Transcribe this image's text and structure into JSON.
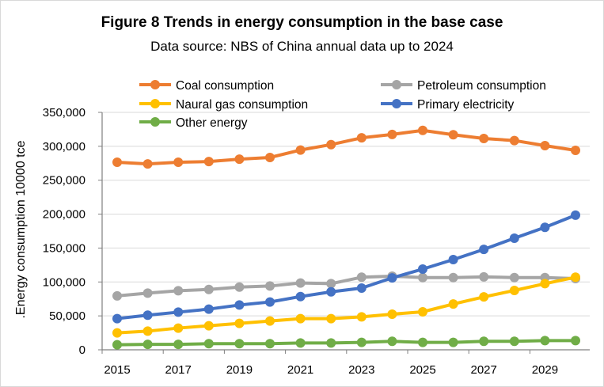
{
  "chart_data": {
    "type": "line",
    "title": "Figure 8  Trends in energy consumption in the base case",
    "subtitle": "Data source: NBS of China annual data up to 2024",
    "xlabel": "",
    "ylabel": ".Energy consumption  10000 tce",
    "ylim": [
      0,
      350000
    ],
    "yticks": [
      0,
      50000,
      100000,
      150000,
      200000,
      250000,
      300000,
      350000
    ],
    "ytick_labels": [
      "0",
      "50,000",
      "100,000",
      "150,000",
      "200,000",
      "250,000",
      "300,000",
      "350,000"
    ],
    "x": [
      2015,
      2016,
      2017,
      2018,
      2019,
      2020,
      2021,
      2022,
      2023,
      2024,
      2025,
      2026,
      2027,
      2028,
      2029,
      2030
    ],
    "xtick_labels": [
      "2015",
      "2017",
      "2019",
      "2021",
      "2023",
      "2025",
      "2027",
      "2029"
    ],
    "grid": "horizontal",
    "legend_position": "top",
    "series": [
      {
        "name": "Coal consumption",
        "color": "#ED7D31",
        "values": [
          276500,
          274000,
          276500,
          277500,
          281000,
          283500,
          294500,
          302500,
          312500,
          317500,
          323500,
          317000,
          311500,
          308500,
          301000,
          294000
        ]
      },
      {
        "name": "Petroleum consumption",
        "color": "#A5A5A5",
        "values": [
          79500,
          83500,
          87000,
          89000,
          92500,
          94000,
          98500,
          97500,
          107000,
          108500,
          106500,
          106500,
          107500,
          106500,
          106500,
          105000
        ]
      },
      {
        "name": "Naural gas consumption",
        "color": "#FFC000",
        "values": [
          25000,
          27500,
          32000,
          35500,
          39000,
          42500,
          46000,
          46000,
          48500,
          52500,
          56000,
          67500,
          78000,
          87500,
          97500,
          107000
        ]
      },
      {
        "name": "Primary electricity",
        "color": "#4472C4",
        "values": [
          46000,
          51000,
          55500,
          60000,
          66000,
          70500,
          78500,
          85500,
          91000,
          106000,
          119000,
          133000,
          148000,
          164500,
          180500,
          198500
        ]
      },
      {
        "name": "Other energy",
        "color": "#70AD47",
        "values": [
          7500,
          8000,
          8000,
          9000,
          9000,
          9000,
          10000,
          10000,
          11000,
          12500,
          11000,
          11000,
          12500,
          12500,
          13500,
          13500
        ]
      }
    ]
  }
}
